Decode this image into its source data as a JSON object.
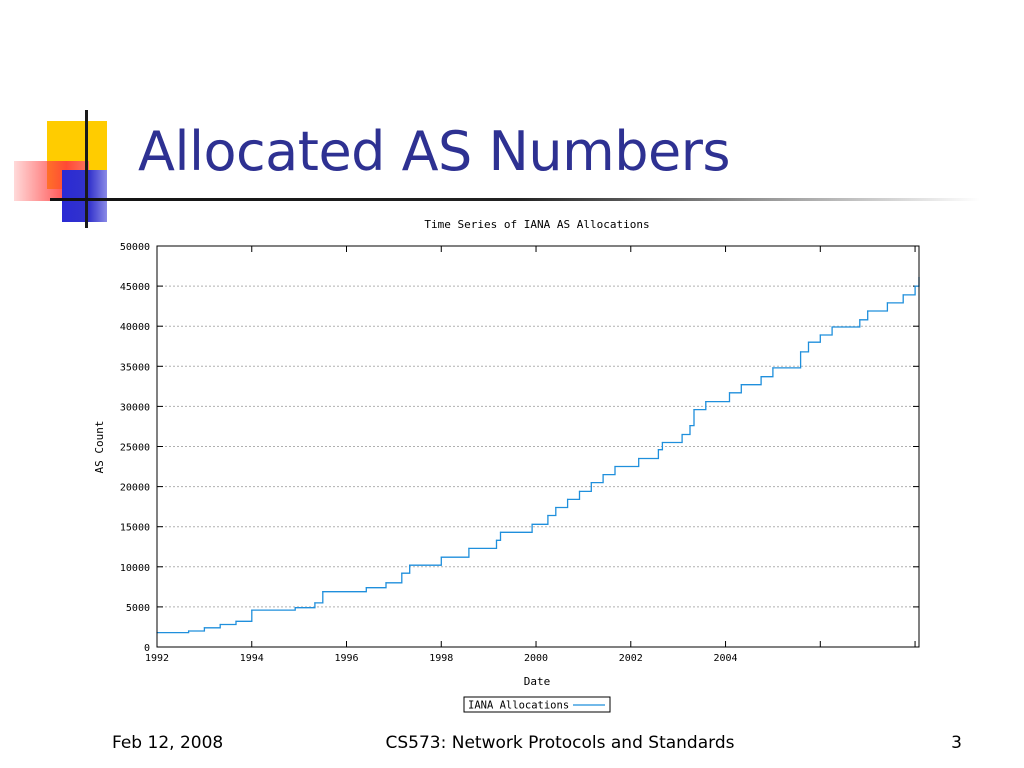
{
  "slide": {
    "title": "Allocated AS Numbers",
    "footer": {
      "date": "Feb 12, 2008",
      "course": "CS573: Network Protocols and Standards",
      "page": "3"
    },
    "colors": {
      "title": "#2e3192",
      "yellow": "#ffcc00",
      "blue": "#3333cc",
      "red": "#ff3b3b"
    }
  },
  "chart_data": {
    "type": "line",
    "title": "Time Series of IANA AS Allocations",
    "xlabel": "Date",
    "ylabel": "AS Count",
    "xlim": [
      "1992-01-01",
      "2008-02-01"
    ],
    "ylim": [
      0,
      50000
    ],
    "x_tick_labels": [
      "1992",
      "1994",
      "1996",
      "1998",
      "2000",
      "2002",
      "2004",
      "",
      ""
    ],
    "y_ticks": [
      0,
      5000,
      10000,
      15000,
      20000,
      25000,
      30000,
      35000,
      40000,
      45000,
      50000
    ],
    "grid": true,
    "legend_position": "bottom-center",
    "step": true,
    "series": [
      {
        "name": "IANA Allocations",
        "color": "#1f8fdc",
        "points": [
          [
            "1992-01-01",
            1800
          ],
          [
            "1992-09-01",
            2000
          ],
          [
            "1993-01-01",
            2400
          ],
          [
            "1993-05-01",
            2800
          ],
          [
            "1993-09-01",
            3200
          ],
          [
            "1994-01-01",
            4600
          ],
          [
            "1994-12-01",
            4900
          ],
          [
            "1995-05-01",
            5500
          ],
          [
            "1995-07-01",
            6900
          ],
          [
            "1996-06-01",
            7400
          ],
          [
            "1996-11-01",
            8000
          ],
          [
            "1997-03-01",
            9200
          ],
          [
            "1997-05-01",
            10200
          ],
          [
            "1998-01-01",
            11200
          ],
          [
            "1998-08-01",
            12300
          ],
          [
            "1999-03-01",
            13300
          ],
          [
            "1999-04-01",
            14300
          ],
          [
            "1999-12-01",
            15300
          ],
          [
            "2000-04-01",
            16400
          ],
          [
            "2000-06-01",
            17400
          ],
          [
            "2000-09-01",
            18400
          ],
          [
            "2000-12-01",
            19400
          ],
          [
            "2001-03-01",
            20500
          ],
          [
            "2001-06-01",
            21500
          ],
          [
            "2001-09-01",
            22500
          ],
          [
            "2002-03-01",
            23500
          ],
          [
            "2002-08-01",
            24600
          ],
          [
            "2002-09-01",
            25500
          ],
          [
            "2003-02-01",
            26500
          ],
          [
            "2003-04-01",
            27600
          ],
          [
            "2003-05-01",
            29600
          ],
          [
            "2003-08-01",
            30600
          ],
          [
            "2004-02-01",
            31700
          ],
          [
            "2004-05-01",
            32700
          ],
          [
            "2004-10-01",
            33700
          ],
          [
            "2005-01-01",
            34800
          ],
          [
            "2005-08-01",
            36800
          ],
          [
            "2005-10-01",
            38000
          ],
          [
            "2006-01-01",
            38900
          ],
          [
            "2006-04-01",
            39900
          ],
          [
            "2006-11-01",
            40800
          ],
          [
            "2007-01-01",
            41900
          ],
          [
            "2007-06-01",
            42900
          ],
          [
            "2007-10-01",
            43900
          ],
          [
            "2008-01-01",
            45000
          ],
          [
            "2008-02-01",
            46100
          ]
        ]
      }
    ]
  }
}
